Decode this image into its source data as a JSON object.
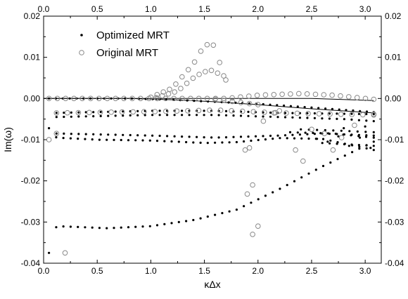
{
  "chart_data": {
    "type": "scatter",
    "xlabel": "κΔx",
    "ylabel": "Im(ω)",
    "xlim": [
      0,
      3.15
    ],
    "ylim": [
      -0.04,
      0.02
    ],
    "x_ticks": [
      "0.0",
      "0.5",
      "1.0",
      "1.5",
      "2.0",
      "2.5",
      "3.0"
    ],
    "y_ticks": [
      "0.02",
      "0.01",
      "0.00",
      "-0.01",
      "-0.02",
      "-0.03",
      "-0.04"
    ],
    "legend_position": "top-left",
    "colors": {
      "optimized": "#000000",
      "original": "#888888",
      "axis": "#000000"
    },
    "series": [
      {
        "name": "Optimized MRT",
        "marker": "dot",
        "branches": [
          {
            "x_start": 0.05,
            "x_end": 3.08,
            "n": 48,
            "y_points": [
              [
                0,
                0
              ],
              [
                0.8,
                0
              ],
              [
                1.2,
                -0.0003
              ],
              [
                1.6,
                -0.0008
              ],
              [
                2.0,
                -0.0013
              ],
              [
                2.5,
                -0.0022
              ],
              [
                3.08,
                -0.0033
              ]
            ]
          },
          {
            "x_start": 0.12,
            "x_end": 3.08,
            "n": 44,
            "y_points": [
              [
                0.12,
                -0.0035
              ],
              [
                1.0,
                -0.003
              ],
              [
                1.6,
                -0.003
              ],
              [
                2.2,
                -0.0035
              ],
              [
                3.08,
                -0.0038
              ]
            ]
          },
          {
            "x_start": 0.12,
            "x_end": 3.08,
            "n": 44,
            "y_points": [
              [
                0.12,
                -0.0045
              ],
              [
                1.0,
                -0.004
              ],
              [
                1.6,
                -0.004
              ],
              [
                2.2,
                -0.0045
              ],
              [
                2.8,
                -0.005
              ],
              [
                3.08,
                -0.0055
              ]
            ]
          },
          {
            "x_start": 0.12,
            "x_end": 3.08,
            "n": 44,
            "y_points": [
              [
                0.12,
                -0.0085
              ],
              [
                1.0,
                -0.009
              ],
              [
                1.6,
                -0.0095
              ],
              [
                2.2,
                -0.009
              ],
              [
                2.6,
                -0.0085
              ],
              [
                3.08,
                -0.009
              ]
            ]
          },
          {
            "x_start": 0.05,
            "x_end": 3.08,
            "n": 46,
            "y_points": [
              [
                0.05,
                -0.0072
              ],
              [
                0.12,
                -0.0095
              ],
              [
                0.5,
                -0.01
              ],
              [
                1.0,
                -0.0102
              ],
              [
                1.5,
                -0.0108
              ],
              [
                1.8,
                -0.0106
              ],
              [
                2.2,
                -0.0096
              ],
              [
                2.6,
                -0.0098
              ],
              [
                3.08,
                -0.0125
              ]
            ]
          },
          {
            "x_start": 2.3,
            "x_end": 3.08,
            "n": 12,
            "y_points": [
              [
                2.3,
                -0.0082
              ],
              [
                2.7,
                -0.0085
              ],
              [
                3.08,
                -0.0095
              ]
            ]
          },
          {
            "x_start": 2.4,
            "x_end": 3.08,
            "n": 10,
            "y_points": [
              [
                2.4,
                -0.0075
              ],
              [
                2.75,
                -0.0078
              ],
              [
                3.08,
                -0.0082
              ]
            ]
          },
          {
            "x_start": 2.6,
            "x_end": 3.08,
            "n": 8,
            "y_points": [
              [
                2.6,
                -0.0108
              ],
              [
                3.08,
                -0.0115
              ]
            ]
          },
          {
            "x_start": 0.05,
            "x_end": 3.08,
            "n": 46,
            "y_points": [
              [
                0.05,
                -0.0375
              ],
              [
                0.12,
                -0.031
              ],
              [
                0.6,
                -0.0315
              ],
              [
                1.0,
                -0.031
              ],
              [
                1.4,
                -0.0295
              ],
              [
                1.8,
                -0.027
              ],
              [
                2.2,
                -0.022
              ],
              [
                2.6,
                -0.0165
              ],
              [
                3.0,
                -0.0115
              ],
              [
                3.08,
                -0.0105
              ]
            ]
          }
        ],
        "extra_points": [
          [
            2.65,
            -0.0105
          ],
          [
            2.75,
            -0.0092
          ],
          [
            2.85,
            -0.0115
          ],
          [
            2.95,
            -0.0095
          ],
          [
            3.05,
            -0.012
          ],
          [
            2.55,
            -0.0098
          ],
          [
            2.8,
            -0.0072
          ],
          [
            3.0,
            -0.0068
          ]
        ]
      },
      {
        "name": "Original MRT",
        "marker": "circle",
        "branches": [
          {
            "x_start": 0.05,
            "x_end": 3.08,
            "n": 40,
            "y_points": [
              [
                0.05,
                0
              ],
              [
                0.8,
                0
              ],
              [
                1.2,
                0
              ],
              [
                1.7,
                0
              ],
              [
                2.0,
                0.0008
              ],
              [
                2.4,
                0.0012
              ],
              [
                2.7,
                0.0008
              ],
              [
                3.08,
                -0.0002
              ]
            ]
          },
          {
            "x_start": 1.0,
            "x_end": 1.7,
            "n": 13,
            "y_points": [
              [
                1.0,
                0.0003
              ],
              [
                1.2,
                0.0025
              ],
              [
                1.4,
                0.0085
              ],
              [
                1.5,
                0.013
              ],
              [
                1.58,
                0.0132
              ],
              [
                1.7,
                0.0045
              ]
            ]
          },
          {
            "x_start": 1.05,
            "x_end": 1.68,
            "n": 12,
            "y_points": [
              [
                1.05,
                0.0002
              ],
              [
                1.25,
                0.0018
              ],
              [
                1.42,
                0.0055
              ],
              [
                1.55,
                0.007
              ],
              [
                1.68,
                0.0055
              ]
            ]
          },
          {
            "x_start": 0.12,
            "x_end": 3.08,
            "n": 30,
            "y_points": [
              [
                0.12,
                -0.0035
              ],
              [
                1.0,
                -0.0032
              ],
              [
                1.6,
                -0.0028
              ],
              [
                2.2,
                -0.0035
              ],
              [
                3.08,
                -0.004
              ]
            ]
          },
          {
            "x_start": 1.6,
            "x_end": 2.0,
            "n": 6,
            "y_points": [
              [
                1.6,
                -0.0002
              ],
              [
                2.0,
                -0.0015
              ]
            ]
          }
        ],
        "extra_points": [
          [
            0.05,
            -0.01
          ],
          [
            0.12,
            -0.0085
          ],
          [
            0.2,
            -0.0375
          ],
          [
            1.95,
            -0.033
          ],
          [
            2.0,
            -0.031
          ],
          [
            1.9,
            -0.0232
          ],
          [
            1.95,
            -0.021
          ],
          [
            1.88,
            -0.0125
          ],
          [
            1.92,
            -0.012
          ],
          [
            2.05,
            -0.0055
          ],
          [
            2.2,
            -0.003
          ],
          [
            2.35,
            -0.0125
          ],
          [
            2.42,
            -0.0152
          ],
          [
            2.5,
            -0.0075
          ],
          [
            2.62,
            -0.0085
          ],
          [
            2.7,
            -0.0125
          ],
          [
            2.78,
            -0.0095
          ],
          [
            2.9,
            -0.0065
          ],
          [
            3.08,
            -0.0038
          ],
          [
            2.15,
            -0.0035
          ]
        ]
      }
    ],
    "curves": [
      {
        "style": "line",
        "points": [
          [
            0,
            0
          ],
          [
            0.8,
            0
          ],
          [
            1.2,
            -0.0003
          ],
          [
            1.6,
            -0.0008
          ],
          [
            2.0,
            -0.0015
          ],
          [
            2.5,
            -0.0025
          ],
          [
            3.08,
            -0.0035
          ]
        ]
      },
      {
        "style": "line",
        "points": [
          [
            0,
            0
          ],
          [
            1.0,
            0
          ],
          [
            1.5,
            0
          ],
          [
            2.0,
            0
          ],
          [
            2.5,
            0
          ],
          [
            3.08,
            -0.0005
          ]
        ]
      }
    ]
  }
}
